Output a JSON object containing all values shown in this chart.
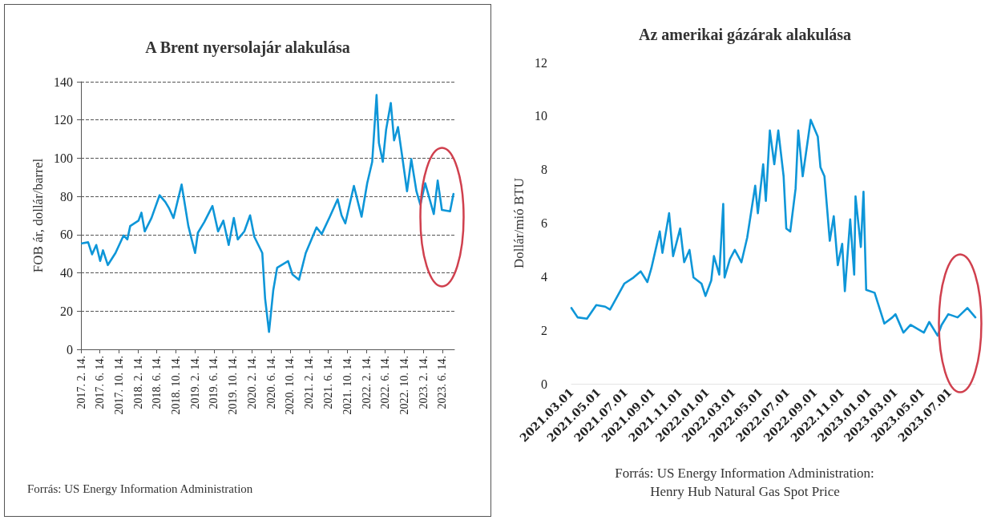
{
  "chart_data": [
    {
      "type": "line",
      "title": "A Brent nyersolajár alakulása",
      "ylabel": "FOB ár, dollár/barrel",
      "annotations": [
        "Forrás: US Energy Information Administration"
      ],
      "x": [
        "2017-02-20",
        "2017-04-01",
        "2017-04-26",
        "2017-05-23",
        "2017-06-17",
        "2017-07-05",
        "2017-08-05",
        "2017-09-23",
        "2017-11-14",
        "2017-12-08",
        "2017-12-26",
        "2018-02-17",
        "2018-03-08",
        "2018-03-29",
        "2018-05-11",
        "2018-07-02",
        "2018-08-08",
        "2018-09-02",
        "2018-09-29",
        "2018-11-20",
        "2019-01-02",
        "2019-02-14",
        "2019-03-04",
        "2019-04-14",
        "2019-06-05",
        "2019-07-11",
        "2019-08-14",
        "2019-09-17",
        "2019-10-20",
        "2019-11-14",
        "2019-12-26",
        "2020-02-01",
        "2020-02-28",
        "2020-04-19",
        "2020-05-07",
        "2020-06-01",
        "2020-06-28",
        "2020-07-23",
        "2020-10-01",
        "2020-10-29",
        "2020-12-10",
        "2021-01-22",
        "2021-04-01",
        "2021-05-04",
        "2021-06-25",
        "2021-08-14",
        "2021-09-08",
        "2021-10-02",
        "2021-11-26",
        "2022-01-14",
        "2022-02-19",
        "2022-03-23",
        "2022-04-20",
        "2022-05-05",
        "2022-05-30",
        "2022-06-20",
        "2022-07-20",
        "2022-08-10",
        "2022-09-04",
        "2022-10-01",
        "2022-11-01",
        "2022-11-28",
        "2022-12-31",
        "2023-01-25",
        "2023-02-25",
        "2023-04-21",
        "2023-05-16",
        "2023-06-12",
        "2023-08-03",
        "2023-08-25"
      ],
      "series": [
        {
          "color": "#0e96d8",
          "values": [
            55.4,
            56,
            49.7,
            54.6,
            46.2,
            51.8,
            44.1,
            50.4,
            59.6,
            57.5,
            64.5,
            67.3,
            71.5,
            61.7,
            68.7,
            80.6,
            77.1,
            73.6,
            68.7,
            86.2,
            64.5,
            50.4,
            61.0,
            66.6,
            75.0,
            61.7,
            67.3,
            54.6,
            68.7,
            57.5,
            61.7,
            70.1,
            58.9,
            50.4,
            26.6,
            9.1,
            30.8,
            42.7,
            46.2,
            39.2,
            36.4,
            50.4,
            63.8,
            60.3,
            69.4,
            78.5,
            70.1,
            65.9,
            85.5,
            69.4,
            86.9,
            98.1,
            133.1,
            107.9,
            98.1,
            114.9,
            128.9,
            109.3,
            116.3,
            100.9,
            82.7,
            99.5,
            82.7,
            75.7,
            86.9,
            70.8,
            88.3,
            72.9,
            72.2,
            81.3
          ]
        }
      ],
      "xlim": [
        "2017-02-14",
        "2023-08-31"
      ],
      "xticks": [
        {
          "value": "2017-02-14",
          "label": "2017. 2. 14."
        },
        {
          "value": "2017-06-14",
          "label": "2017. 6. 14."
        },
        {
          "value": "2017-10-14",
          "label": "2017. 10. 14."
        },
        {
          "value": "2018-02-14",
          "label": "2018. 2. 14."
        },
        {
          "value": "2018-06-14",
          "label": "2018. 6. 14."
        },
        {
          "value": "2018-10-14",
          "label": "2018. 10. 14."
        },
        {
          "value": "2019-02-14",
          "label": "2019. 2. 14."
        },
        {
          "value": "2019-06-14",
          "label": "2019. 6. 14."
        },
        {
          "value": "2019-10-14",
          "label": "2019. 10. 14."
        },
        {
          "value": "2020-02-14",
          "label": "2020. 2. 14."
        },
        {
          "value": "2020-06-14",
          "label": "2020. 6. 14."
        },
        {
          "value": "2020-10-14",
          "label": "2020. 10. 14."
        },
        {
          "value": "2021-02-14",
          "label": "2021. 2. 14."
        },
        {
          "value": "2021-06-14",
          "label": "2021. 6. 14."
        },
        {
          "value": "2021-10-14",
          "label": "2021. 10. 14."
        },
        {
          "value": "2022-02-14",
          "label": "2022. 2. 14."
        },
        {
          "value": "2022-06-14",
          "label": "2022. 6. 14."
        },
        {
          "value": "2022-10-14",
          "label": "2022. 10. 14."
        },
        {
          "value": "2023-02-14",
          "label": "2023. 2. 14."
        },
        {
          "value": "2023-06-14",
          "label": "2023. 6. 14."
        }
      ],
      "ylim": [
        0,
        140
      ],
      "yticks": [
        0,
        20,
        40,
        60,
        80,
        100,
        120,
        140
      ],
      "grid": "y"
    },
    {
      "type": "line",
      "title": "Az amerikai gázárak alakulása",
      "ylabel": "Dollár/mió BTU",
      "annotations": [
        "Forrás: US Energy Information Administration:",
        "Henry Hub Natural Gas Spot Price"
      ],
      "x": [
        "2021-03-01",
        "2021-03-15",
        "2021-04-05",
        "2021-04-26",
        "2021-05-16",
        "2021-05-27",
        "2021-06-28",
        "2021-07-19",
        "2021-08-04",
        "2021-08-19",
        "2021-08-28",
        "2021-09-16",
        "2021-09-22",
        "2021-10-07",
        "2021-10-16",
        "2021-11-01",
        "2021-11-10",
        "2021-11-22",
        "2021-12-01",
        "2021-12-19",
        "2021-12-28",
        "2022-01-10",
        "2022-01-16",
        "2022-01-28",
        "2022-02-06",
        "2022-02-09",
        "2022-02-21",
        "2022-03-04",
        "2022-03-19",
        "2022-04-01",
        "2022-04-19",
        "2022-04-25",
        "2022-05-07",
        "2022-05-13",
        "2022-05-22",
        "2022-06-01",
        "2022-06-10",
        "2022-06-22",
        "2022-06-28",
        "2022-07-07",
        "2022-07-19",
        "2022-07-25",
        "2022-08-04",
        "2022-08-22",
        "2022-09-07",
        "2022-09-13",
        "2022-09-22",
        "2022-10-04",
        "2022-10-13",
        "2022-10-22",
        "2022-11-01",
        "2022-11-07",
        "2022-11-19",
        "2022-11-28",
        "2022-12-01",
        "2022-12-13",
        "2022-12-19",
        "2022-12-25",
        "2023-01-13",
        "2023-02-04",
        "2023-02-22",
        "2023-03-01",
        "2023-03-19",
        "2023-04-04",
        "2023-05-04",
        "2023-05-16",
        "2023-06-04",
        "2023-06-13",
        "2023-06-28",
        "2023-07-19",
        "2023-08-10",
        "2023-08-28"
      ],
      "series": [
        {
          "color": "#0e96d8",
          "values": [
            2.83,
            2.48,
            2.43,
            2.94,
            2.88,
            2.77,
            3.74,
            3.97,
            4.2,
            3.8,
            4.31,
            5.69,
            4.89,
            6.37,
            4.77,
            5.8,
            4.54,
            5.0,
            3.97,
            3.74,
            3.28,
            3.86,
            4.77,
            4.08,
            6.72,
            3.97,
            4.66,
            5.0,
            4.54,
            5.46,
            7.4,
            6.37,
            8.2,
            6.83,
            9.46,
            8.2,
            9.46,
            7.75,
            5.8,
            5.69,
            7.29,
            9.46,
            7.75,
            9.86,
            9.23,
            8.09,
            7.75,
            5.34,
            6.26,
            4.43,
            5.23,
            3.46,
            6.14,
            4.08,
            7.0,
            5.11,
            7.17,
            3.51,
            3.4,
            2.25,
            2.48,
            2.6,
            1.91,
            2.2,
            1.91,
            2.31,
            1.8,
            2.2,
            2.6,
            2.48,
            2.83,
            2.48
          ]
        }
      ],
      "xlim": [
        "2021-03-01",
        "2023-08-28"
      ],
      "xticks": [
        {
          "value": "2021-03-01",
          "label": "2021.03.01"
        },
        {
          "value": "2021-05-01",
          "label": "2021.05.01"
        },
        {
          "value": "2021-07-01",
          "label": "2021.07.01"
        },
        {
          "value": "2021-09-01",
          "label": "2021.09.01"
        },
        {
          "value": "2021-11-01",
          "label": "2021.11.01"
        },
        {
          "value": "2022-01-01",
          "label": "2022.01.01"
        },
        {
          "value": "2022-03-01",
          "label": "2022.03.01"
        },
        {
          "value": "2022-05-01",
          "label": "2022.05.01"
        },
        {
          "value": "2022-07-01",
          "label": "2022.07.01"
        },
        {
          "value": "2022-09-01",
          "label": "2022.09.01"
        },
        {
          "value": "2022-11-01",
          "label": "2022.11.01"
        },
        {
          "value": "2023-01-01",
          "label": "2023.01.01"
        },
        {
          "value": "2023-03-01",
          "label": "2023.03.01"
        },
        {
          "value": "2023-05-01",
          "label": "2023.05.01"
        },
        {
          "value": "2023-07-01",
          "label": "2023.07.01"
        }
      ],
      "ylim": [
        0,
        12
      ],
      "yticks": [
        0,
        2,
        4,
        6,
        8,
        10,
        12
      ]
    }
  ]
}
